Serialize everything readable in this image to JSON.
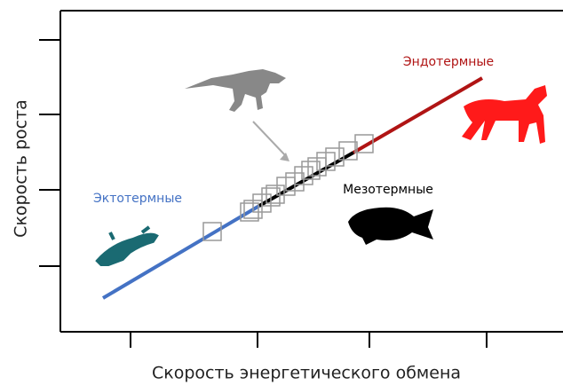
{
  "chart_data": {
    "type": "line",
    "xlabel": "Скорость энергетического обмена",
    "ylabel": "Скорость роста",
    "xlim": [
      0,
      56.6
    ],
    "ylim": [
      0,
      36.2
    ],
    "xticks": [
      7.9,
      22.2,
      34.8,
      48.0
    ],
    "yticks": [
      7.4,
      16.0,
      24.5,
      32.9
    ],
    "series": [
      {
        "name": "Эктотермные",
        "color": "#4472c4",
        "x": [
          4.8,
          22.4
        ],
        "values": [
          3.8,
          14.2
        ]
      },
      {
        "name": "Мезотермные",
        "color": "#000000",
        "x": [
          22.4,
          33.0
        ],
        "values": [
          14.2,
          20.2
        ]
      },
      {
        "name": "Эндотермные",
        "color": "#b01414",
        "x": [
          33.0,
          47.5
        ],
        "values": [
          20.2,
          28.6
        ]
      },
      {
        "marker": "square",
        "color": "#999999",
        "x": [
          17.1,
          21.3,
          21.7,
          22.7,
          23.7,
          24.2,
          25.4,
          26.4,
          27.4,
          28.2,
          28.9,
          29.9,
          30.9,
          32.4,
          34.2
        ],
        "values": [
          11.3,
          13.5,
          13.8,
          14.5,
          15.2,
          15.5,
          16.4,
          16.9,
          17.6,
          18.2,
          18.6,
          19.2,
          19.7,
          20.4,
          21.2
        ]
      }
    ]
  }
}
